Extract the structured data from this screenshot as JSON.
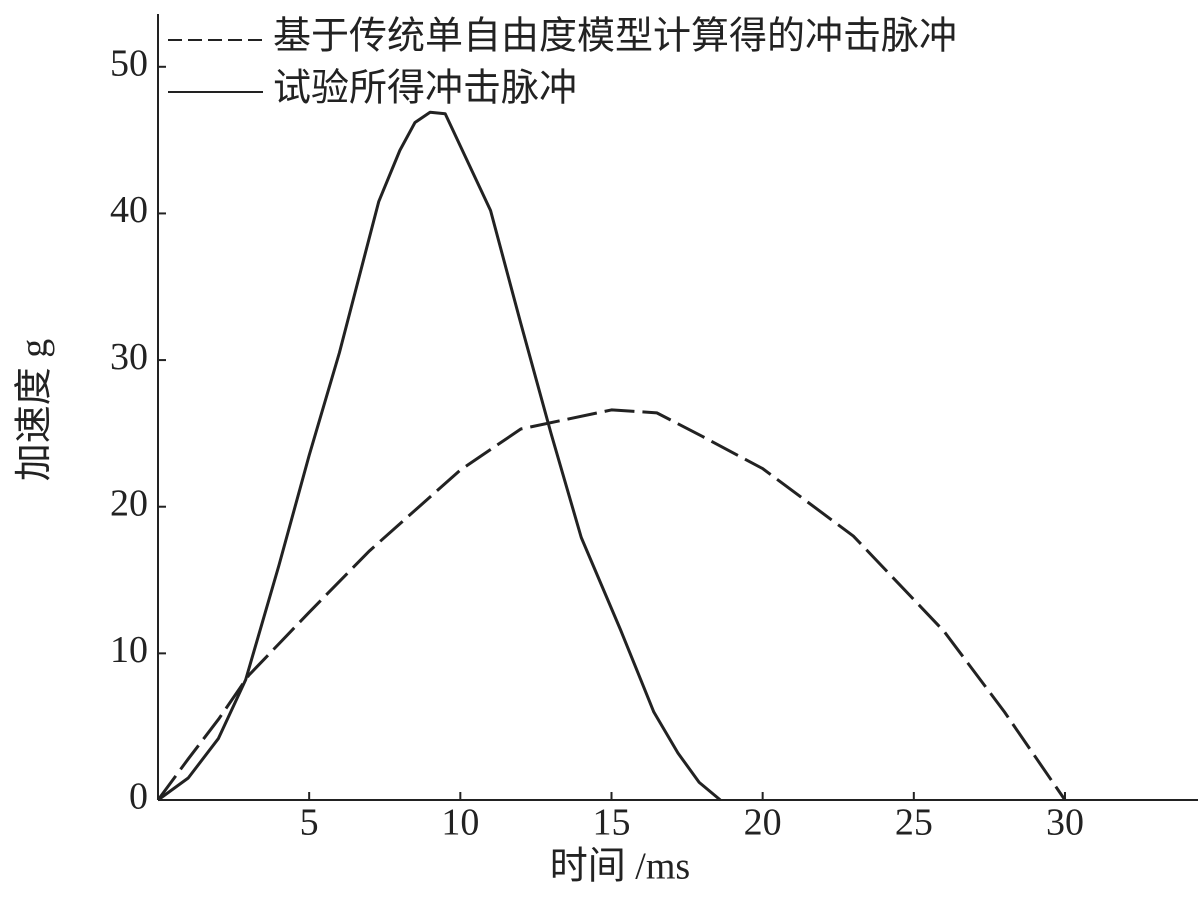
{
  "chart_data": {
    "type": "line",
    "x_label": "时间 /ms",
    "y_label": "加速度 g",
    "xlim": [
      0,
      34.4
    ],
    "ylim": [
      0,
      53.6
    ],
    "xticks": [
      5,
      10,
      15,
      20,
      25,
      30
    ],
    "yticks": [
      0,
      10,
      20,
      30,
      40,
      50
    ],
    "grid": false,
    "legend": "top-left",
    "series": [
      {
        "name": "基于传统单自由度模型计算得的冲击脉冲",
        "color": "#222222",
        "dash": true,
        "x": [
          0,
          1,
          2,
          3,
          5,
          7,
          10,
          12,
          15,
          16.5,
          18,
          20,
          23,
          26,
          28,
          30
        ],
        "values": [
          0,
          2.8,
          5.5,
          8.5,
          12.8,
          17,
          22.5,
          25.3,
          26.6,
          26.4,
          24.8,
          22.6,
          18,
          11.5,
          6,
          0
        ]
      },
      {
        "name": "试验所得冲击脉冲",
        "color": "#222222",
        "dash": false,
        "x": [
          0,
          1,
          2,
          2.9,
          4,
          5,
          6,
          7.3,
          8,
          8.5,
          9,
          9.5,
          10,
          11,
          12,
          13,
          14,
          15.3,
          16.4,
          17.2,
          17.9,
          18.6
        ],
        "values": [
          0,
          1.5,
          4.2,
          8.2,
          16,
          23.5,
          30.5,
          40.8,
          44.3,
          46.2,
          46.9,
          46.8,
          44.6,
          40.2,
          32.5,
          25,
          17.9,
          11.6,
          6,
          3.2,
          1.2,
          0
        ]
      }
    ]
  }
}
